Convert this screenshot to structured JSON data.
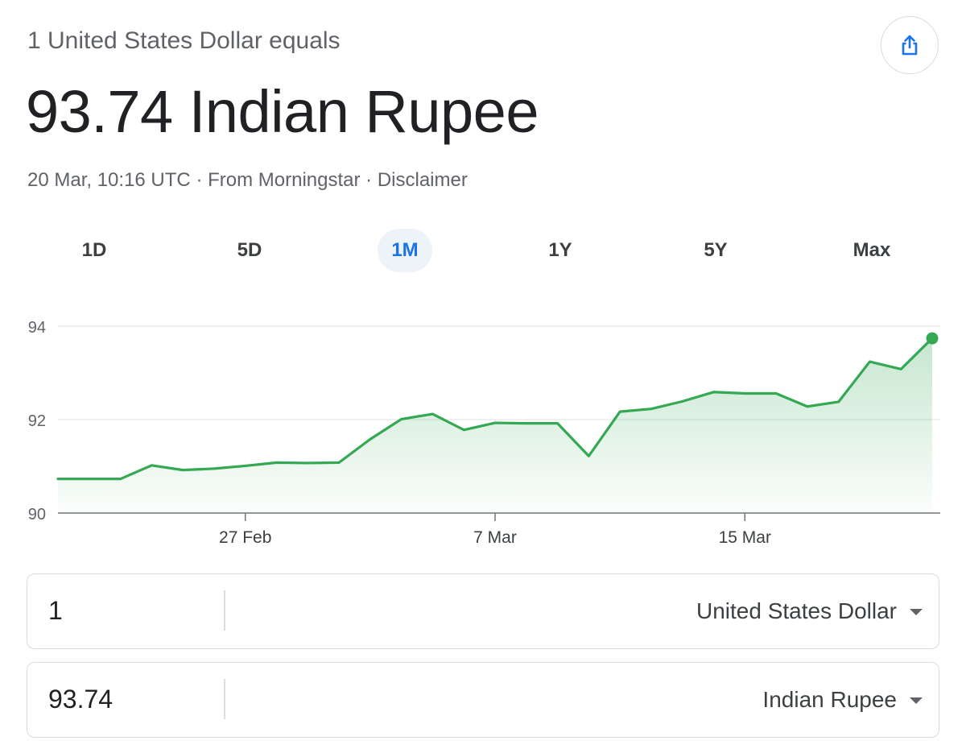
{
  "header": {
    "subtitle": "1 United States Dollar equals",
    "rate_text": "93.74 Indian Rupee",
    "meta": {
      "timestamp": "20 Mar, 10:16 UTC",
      "separator1": "·",
      "source": "From Morningstar",
      "separator2": "·",
      "disclaimer": "Disclaimer"
    }
  },
  "share": {
    "icon": "share-icon"
  },
  "tabs": [
    {
      "label": "1D",
      "active": false
    },
    {
      "label": "5D",
      "active": false
    },
    {
      "label": "1M",
      "active": true
    },
    {
      "label": "1Y",
      "active": false
    },
    {
      "label": "5Y",
      "active": false
    },
    {
      "label": "Max",
      "active": false
    }
  ],
  "colors": {
    "line": "#34a853",
    "accent": "#1a73e8",
    "grid": "#ebebeb",
    "text_secondary": "#5f6368"
  },
  "chart_data": {
    "type": "area",
    "title": "",
    "xlabel": "",
    "ylabel": "",
    "ylim": [
      90,
      94
    ],
    "y_ticks": [
      90,
      92,
      94
    ],
    "x_ticks": [
      {
        "label": "27 Feb",
        "index": 6
      },
      {
        "label": "7 Mar",
        "index": 14
      },
      {
        "label": "15 Mar",
        "index": 22
      }
    ],
    "grid": true,
    "series": [
      {
        "values": [
          90.73,
          90.73,
          90.73,
          91.02,
          90.92,
          90.95,
          91.01,
          91.08,
          91.07,
          91.08,
          91.58,
          92.01,
          92.12,
          91.78,
          91.93,
          91.92,
          91.92,
          91.22,
          92.17,
          92.23,
          92.39,
          92.59,
          92.56,
          92.56,
          92.28,
          92.38,
          93.24,
          93.08,
          93.74
        ]
      }
    ],
    "end_marker": true
  },
  "converter": {
    "from": {
      "amount": "1",
      "currency": "United States Dollar"
    },
    "to": {
      "amount": "93.74",
      "currency": "Indian Rupee"
    }
  }
}
